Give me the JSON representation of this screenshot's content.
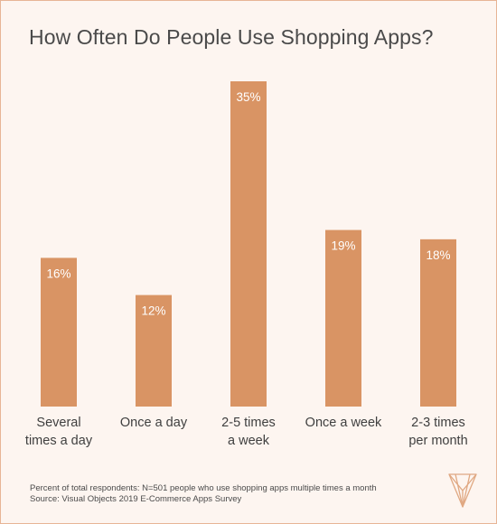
{
  "chart_data": {
    "type": "bar",
    "title": "How Often Do People Use Shopping Apps?",
    "categories": [
      "Several\ntimes a day",
      "Once a day",
      "2-5 times\na week",
      "Once a week",
      "2-3 times\nper month"
    ],
    "values": [
      16,
      12,
      35,
      19,
      18
    ],
    "value_labels": [
      "16%",
      "12%",
      "35%",
      "19%",
      "18%"
    ],
    "unit": "%",
    "ylim": [
      0,
      35
    ],
    "grid": false,
    "bar_color": "#d99464",
    "label_color": "#ffffff"
  },
  "footnote": {
    "line1": "Percent of total respondents: N=501 people who use shopping apps multiple times a month",
    "line2": "Source: Visual Objects 2019 E-Commerce Apps Survey"
  },
  "colors": {
    "background": "#fdf5f0",
    "border": "#e7b596",
    "logo": "#e0a882"
  },
  "icons": {
    "logo": "visual-objects-logo-icon"
  }
}
